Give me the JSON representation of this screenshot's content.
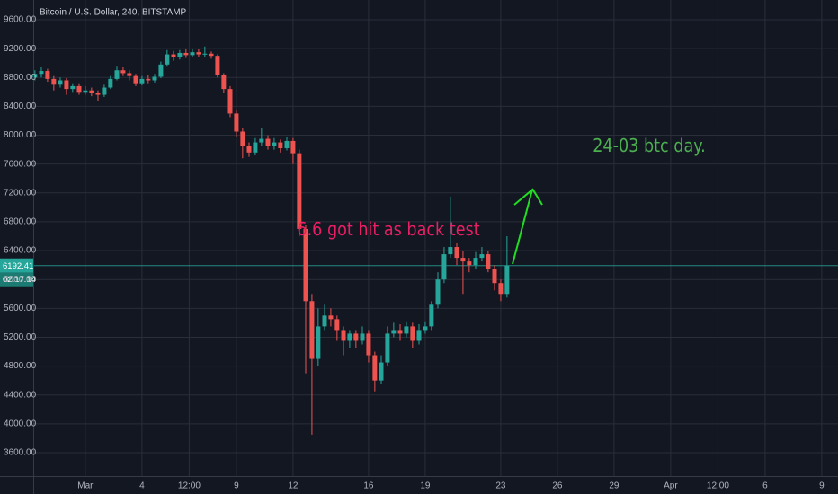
{
  "chart_data": {
    "type": "candlestick",
    "title": "Bitcoin / U.S. Dollar, 240, BITSTAMP",
    "annotations": [
      {
        "text": "6.6 got hit as back test",
        "color": "#e91e63"
      },
      {
        "text": "24-03 btc day.",
        "color": "#4caf50"
      }
    ],
    "last_price": 6192.41,
    "countdown": "02:17:14",
    "up_color": "#26a69a",
    "down_color": "#ef5350",
    "grid": true,
    "xlim": [
      -1.71,
      40.86
    ],
    "ylim": [
      3276,
      9874
    ],
    "xticks": [
      {
        "value": 1,
        "label": "Mar"
      },
      4,
      {
        "value": 6.5,
        "label": "12:00"
      },
      9,
      12,
      16,
      19,
      23,
      26,
      29,
      {
        "value": 32,
        "label": "Apr"
      },
      {
        "value": 34.5,
        "label": "12:00"
      },
      {
        "value": 37,
        "label": "6"
      },
      {
        "value": 40,
        "label": "9"
      }
    ],
    "yticks": [
      {
        "value": 3600,
        "label": "3600.00"
      },
      {
        "value": 4000,
        "label": "4000.00"
      },
      {
        "value": 4400,
        "label": "4400.00"
      },
      {
        "value": 4800,
        "label": "4800.00"
      },
      {
        "value": 5200,
        "label": "5200.00"
      },
      {
        "value": 5600,
        "label": "5600.00"
      },
      {
        "value": 6000,
        "label": "6000.00"
      },
      {
        "value": 6400,
        "label": "6400.00"
      },
      {
        "value": 6800,
        "label": "6800.00"
      },
      {
        "value": 7200,
        "label": "7200.00"
      },
      {
        "value": 7600,
        "label": "7600.00"
      },
      {
        "value": 8000,
        "label": "8000.00"
      },
      {
        "value": 8400,
        "label": "8400.00"
      },
      {
        "value": 8800,
        "label": "8800.00"
      },
      {
        "value": 9200,
        "label": "9200.00"
      },
      {
        "value": 9600,
        "label": "9600.00"
      }
    ],
    "x": [
      -1.67,
      -1.33,
      -1,
      -0.67,
      -0.33,
      0,
      0.33,
      0.67,
      1,
      1.33,
      1.67,
      2,
      2.33,
      2.67,
      3,
      3.33,
      3.67,
      4,
      4.33,
      4.67,
      5,
      5.33,
      5.67,
      6,
      6.33,
      6.67,
      7,
      7.33,
      7.67,
      8,
      8.33,
      8.67,
      9,
      9.33,
      9.67,
      10,
      10.33,
      10.67,
      11,
      11.33,
      11.67,
      12,
      12.33,
      12.67,
      13,
      13.33,
      13.67,
      14,
      14.33,
      14.67,
      15,
      15.33,
      15.67,
      16,
      16.33,
      16.67,
      17,
      17.33,
      17.67,
      18,
      18.33,
      18.67,
      19,
      19.33,
      19.67,
      20,
      20.33,
      20.67,
      21,
      21.33,
      21.67,
      22,
      22.33,
      22.67,
      23,
      23.33
    ],
    "open": [
      8800,
      8850,
      8890,
      8780,
      8700,
      8760,
      8640,
      8680,
      8600,
      8620,
      8580,
      8560,
      8660,
      8780,
      8900,
      8860,
      8820,
      8720,
      8780,
      8760,
      8810,
      8980,
      9120,
      9080,
      9140,
      9110,
      9150,
      9120,
      9130,
      9100,
      8830,
      8640,
      8300,
      8050,
      7850,
      7760,
      7900,
      7950,
      7850,
      7900,
      7820,
      7920,
      7750,
      6700,
      5700,
      4900,
      5350,
      5500,
      5450,
      5300,
      5150,
      5250,
      5150,
      5250,
      4950,
      4600,
      4850,
      5250,
      5300,
      5250,
      5350,
      5150,
      5300,
      5350,
      5650,
      6000,
      6350,
      6450,
      6300,
      6250,
      6200,
      6300,
      6350,
      6150,
      5950,
      5800
    ],
    "high": [
      8900,
      8940,
      8920,
      8820,
      8800,
      8790,
      8720,
      8720,
      8680,
      8660,
      8620,
      8700,
      8820,
      8950,
      8940,
      8900,
      8850,
      8820,
      8830,
      8850,
      9020,
      9180,
      9170,
      9180,
      9190,
      9200,
      9190,
      9230,
      9160,
      9120,
      8860,
      8680,
      8340,
      8100,
      7900,
      7960,
      8100,
      8000,
      7960,
      7940,
      7980,
      7960,
      7800,
      6750,
      5800,
      5600,
      5650,
      5600,
      5500,
      5350,
      5300,
      5300,
      5350,
      5300,
      5000,
      4950,
      5350,
      5400,
      5380,
      5420,
      5400,
      5380,
      5420,
      5700,
      6100,
      6450,
      7150,
      6500,
      6400,
      6300,
      6380,
      6450,
      6400,
      6200,
      6000,
      6600
    ],
    "low": [
      8760,
      8800,
      8740,
      8620,
      8660,
      8560,
      8600,
      8560,
      8560,
      8540,
      8480,
      8530,
      8640,
      8760,
      8820,
      8760,
      8680,
      8690,
      8720,
      8730,
      8790,
      8950,
      9030,
      9050,
      9070,
      9080,
      9090,
      9090,
      9060,
      8800,
      8580,
      8250,
      7980,
      7680,
      7700,
      7720,
      7850,
      7800,
      7800,
      7760,
      7790,
      7600,
      6600,
      4700,
      3850,
      4800,
      5300,
      5350,
      5150,
      4950,
      5050,
      5050,
      5100,
      4850,
      4450,
      4550,
      4800,
      5200,
      5150,
      5200,
      5050,
      5100,
      5250,
      5300,
      5600,
      5950,
      6300,
      6200,
      5800,
      6100,
      6150,
      6250,
      6100,
      5850,
      5700,
      5750
    ],
    "close": [
      8850,
      8890,
      8780,
      8700,
      8760,
      8640,
      8680,
      8600,
      8620,
      8580,
      8560,
      8660,
      8780,
      8900,
      8860,
      8820,
      8720,
      8780,
      8760,
      8810,
      8980,
      9120,
      9080,
      9140,
      9110,
      9150,
      9120,
      9130,
      9100,
      8830,
      8640,
      8300,
      8050,
      7850,
      7760,
      7900,
      7950,
      7850,
      7900,
      7820,
      7920,
      7750,
      6700,
      5700,
      4900,
      5350,
      5500,
      5450,
      5300,
      5150,
      5250,
      5150,
      5250,
      4950,
      4600,
      4850,
      5250,
      5300,
      5250,
      5350,
      5150,
      5300,
      5350,
      5650,
      6000,
      6350,
      6450,
      6300,
      6250,
      6200,
      6300,
      6350,
      6150,
      5950,
      5800,
      6192.41
    ]
  }
}
